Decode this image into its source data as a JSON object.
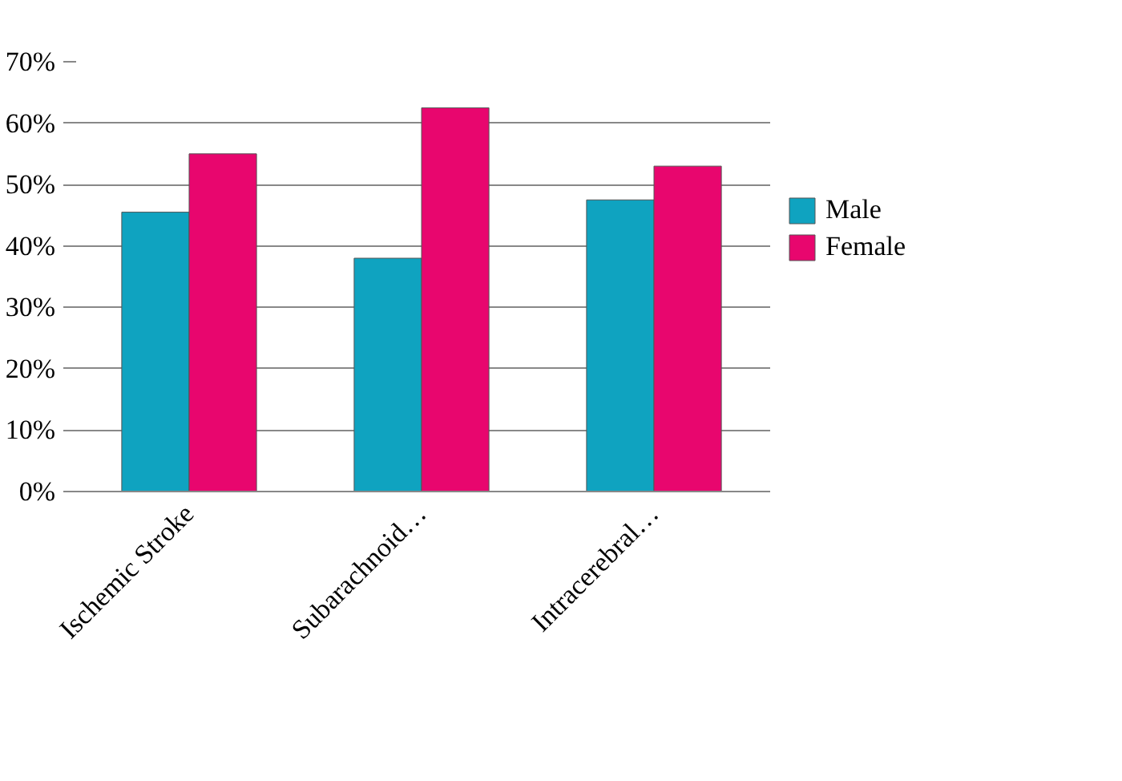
{
  "chart_data": {
    "type": "bar",
    "categories": [
      "Ischemic Stroke",
      "Subarachnoid…",
      "Intracerebral…"
    ],
    "series": [
      {
        "name": "Male",
        "color": "#0fa3c0",
        "values": [
          45.5,
          38,
          47.5
        ]
      },
      {
        "name": "Female",
        "color": "#e8066e",
        "values": [
          55,
          62.5,
          53
        ]
      }
    ],
    "ylim": [
      0,
      70
    ],
    "yticks": [
      {
        "value": 0,
        "label": "0%"
      },
      {
        "value": 10,
        "label": "10%"
      },
      {
        "value": 20,
        "label": "20%"
      },
      {
        "value": 30,
        "label": "30%"
      },
      {
        "value": 40,
        "label": "40%"
      },
      {
        "value": 50,
        "label": "50%"
      },
      {
        "value": 60,
        "label": "60%"
      },
      {
        "value": 70,
        "label": "70%"
      }
    ],
    "grid": "y",
    "legend": "right"
  }
}
